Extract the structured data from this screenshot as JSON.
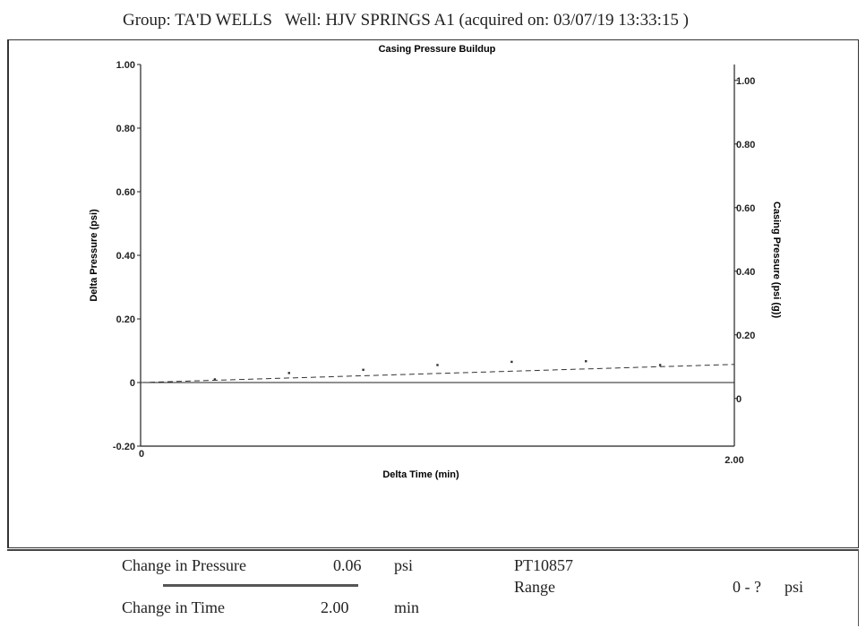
{
  "header": {
    "group": "Group: TA'D WELLS",
    "well": "Well: HJV SPRINGS A1 (acquired on: 03/07/19 13:33:15 )"
  },
  "footer": {
    "pressure_label": "Change in Pressure",
    "pressure_value": "0.06",
    "pressure_unit": "psi",
    "time_label": "Change in Time",
    "time_value": "2.00",
    "time_unit": "min",
    "sensor": "PT10857",
    "range_label": "Range",
    "range_value": "0 - ?",
    "range_unit": "psi"
  },
  "chart_data": {
    "type": "scatter",
    "title": "Casing Pressure Buildup",
    "xlabel": "Delta Time (min)",
    "ylabel": "Delta Pressure (psi)",
    "y2label": "Casing Pressure (psi (g))",
    "xlim": [
      0,
      2.0
    ],
    "ylim": [
      -0.2,
      1.0
    ],
    "y2lim": [
      -0.15,
      1.05
    ],
    "x_ticks": [
      "0",
      "2.00"
    ],
    "y_ticks": [
      "1.00",
      "0.80",
      "0.60",
      "0.40",
      "0.20",
      "0",
      "-0.20"
    ],
    "y2_ticks": [
      "1.00",
      "0.80",
      "0.60",
      "0.40",
      "0.20",
      "0"
    ],
    "y_tick_values": [
      1.0,
      0.8,
      0.6,
      0.4,
      0.2,
      0,
      -0.2
    ],
    "y2_tick_values": [
      1.0,
      0.8,
      0.6,
      0.4,
      0.2,
      0
    ],
    "series": [
      {
        "points": [
          {
            "x": 0.25,
            "y": 0.01
          },
          {
            "x": 0.5,
            "y": 0.03
          },
          {
            "x": 0.75,
            "y": 0.04
          },
          {
            "x": 1.0,
            "y": 0.055
          },
          {
            "x": 1.25,
            "y": 0.065
          },
          {
            "x": 1.5,
            "y": 0.067
          },
          {
            "x": 1.75,
            "y": 0.055
          }
        ]
      }
    ],
    "fit_line": {
      "x": [
        0,
        2.0
      ],
      "y": [
        0,
        0.057
      ],
      "style": "dashed"
    },
    "zero_line": 0,
    "grid": false,
    "colors": {
      "marks": "#333333",
      "axes": "#222222"
    }
  }
}
